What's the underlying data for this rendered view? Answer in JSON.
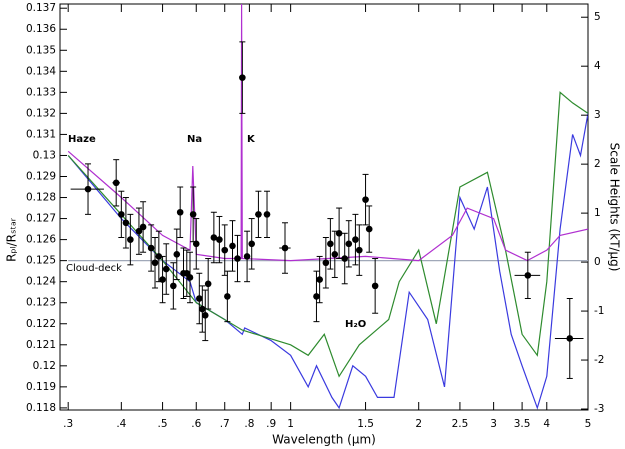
{
  "chart_data": {
    "type": "line",
    "x_label": "Wavelength (μm)",
    "y_label": "Rₚₗ/Rₛₜₐᵣ",
    "y2_label": "Scale Heights (kT/μg)",
    "x_log": true,
    "xlim": [
      0.287,
      5.0
    ],
    "ylim": [
      0.1179,
      0.1372
    ],
    "y2lim": [
      -3.02,
      5.27
    ],
    "xticks": [
      {
        "value": 0.3,
        "label": ".3"
      },
      {
        "value": 0.4,
        "label": ".4"
      },
      {
        "value": 0.5,
        "label": ".5"
      },
      {
        "value": 0.6,
        "label": ".6"
      },
      {
        "value": 0.7,
        "label": ".7"
      },
      {
        "value": 0.8,
        "label": ".8"
      },
      {
        "value": 0.9,
        "label": ".9"
      },
      1,
      1.5,
      2,
      2.5,
      3,
      3.5,
      4,
      5
    ],
    "yticks": [
      0.118,
      0.119,
      0.12,
      0.121,
      0.122,
      0.123,
      0.124,
      0.125,
      0.126,
      0.127,
      0.128,
      0.129,
      0.13,
      0.131,
      0.132,
      0.133,
      0.134,
      0.135,
      0.136,
      0.137
    ],
    "y2ticks": [
      -3,
      -2,
      -1,
      0,
      1,
      2,
      3,
      4,
      5
    ],
    "series": [
      {
        "color": "#a0a8b8",
        "x": [
          0.3,
          5.0
        ],
        "values": [
          0.125,
          0.125
        ]
      },
      {
        "color": "#3a3adf",
        "x": [
          0.3,
          0.4,
          0.5,
          0.58,
          0.6,
          0.7,
          0.77,
          0.78,
          0.9,
          1.0,
          1.1,
          1.15,
          1.25,
          1.3,
          1.4,
          1.5,
          1.6,
          1.75,
          1.9,
          2.1,
          2.3,
          2.5,
          2.7,
          2.9,
          3.1,
          3.3,
          3.5,
          3.8,
          4.0,
          4.3,
          4.6,
          4.8,
          5.0
        ],
        "values": [
          0.13,
          0.127,
          0.125,
          0.124,
          0.123,
          0.1222,
          0.1215,
          0.1218,
          0.1212,
          0.1205,
          0.119,
          0.12,
          0.1185,
          0.118,
          0.12,
          0.1195,
          0.1185,
          0.1185,
          0.1235,
          0.1222,
          0.119,
          0.128,
          0.1265,
          0.1285,
          0.1245,
          0.1215,
          0.12,
          0.118,
          0.1195,
          0.1265,
          0.131,
          0.13,
          0.132
        ]
      },
      {
        "color": "#2e8b2e",
        "x": [
          0.3,
          0.5,
          0.6,
          0.77,
          1.0,
          1.1,
          1.2,
          1.3,
          1.45,
          1.7,
          1.8,
          2.0,
          2.2,
          2.5,
          2.9,
          3.2,
          3.5,
          3.8,
          4.0,
          4.3,
          4.6,
          5.0
        ],
        "values": [
          0.13,
          0.125,
          0.123,
          0.1217,
          0.121,
          0.1205,
          0.1215,
          0.1195,
          0.121,
          0.1222,
          0.124,
          0.1255,
          0.122,
          0.1285,
          0.1292,
          0.1255,
          0.1215,
          0.1205,
          0.124,
          0.133,
          0.1325,
          0.132
        ]
      },
      {
        "color": "#b030d0",
        "x": [
          0.3,
          0.4,
          0.5,
          0.58,
          0.589,
          0.6,
          0.7,
          0.765,
          0.767,
          0.77,
          1.0,
          1.5,
          2.0,
          2.4,
          2.6,
          3.0,
          3.2,
          3.6,
          4.0,
          4.3,
          5.0
        ],
        "values": [
          0.1302,
          0.128,
          0.1262,
          0.1255,
          0.1295,
          0.1253,
          0.1251,
          0.1251,
          0.1372,
          0.1251,
          0.125,
          0.1252,
          0.125,
          0.1262,
          0.1275,
          0.127,
          0.1255,
          0.125,
          0.1255,
          0.1262,
          0.1265
        ]
      },
      {
        "type": "errorbar",
        "color": "#000000",
        "x": [
          0.334,
          0.389,
          0.4,
          0.41,
          0.42,
          0.44,
          0.45,
          0.47,
          0.48,
          0.49,
          0.5,
          0.51,
          0.53,
          0.54,
          0.55,
          0.56,
          0.57,
          0.58,
          0.59,
          0.6,
          0.61,
          0.62,
          0.63,
          0.64,
          0.66,
          0.68,
          0.7,
          0.71,
          0.73,
          0.75,
          0.77,
          0.79,
          0.81,
          0.84,
          0.88,
          0.97,
          1.15,
          1.17,
          1.21,
          1.24,
          1.27,
          1.3,
          1.34,
          1.37,
          1.42,
          1.45,
          1.5,
          1.53,
          1.58,
          3.61,
          4.53
        ],
        "values": [
          0.1284,
          0.1287,
          0.1272,
          0.1268,
          0.126,
          0.1264,
          0.1266,
          0.1256,
          0.1249,
          0.1252,
          0.1241,
          0.1246,
          0.1238,
          0.1253,
          0.1273,
          0.1244,
          0.1244,
          0.1242,
          0.1272,
          0.1258,
          0.1232,
          0.1227,
          0.1224,
          0.1239,
          0.1261,
          0.126,
          0.1255,
          0.1233,
          0.1257,
          0.1251,
          0.1337,
          0.1252,
          0.1258,
          0.1272,
          0.1272,
          0.1256,
          0.1233,
          0.1241,
          0.1249,
          0.1258,
          0.1253,
          0.1263,
          0.1251,
          0.1258,
          0.126,
          0.1255,
          0.1279,
          0.1265,
          0.1238,
          0.1243,
          0.1213
        ],
        "yerr": [
          0.0012,
          0.0011,
          0.0011,
          0.0012,
          0.0012,
          0.0011,
          0.0012,
          0.0011,
          0.0012,
          0.0012,
          0.0011,
          0.0012,
          0.0011,
          0.0012,
          0.0012,
          0.0012,
          0.0011,
          0.0012,
          0.0013,
          0.0012,
          0.0012,
          0.0011,
          0.0012,
          0.0012,
          0.0012,
          0.0011,
          0.0012,
          0.0012,
          0.0012,
          0.0011,
          0.0017,
          0.0012,
          0.0012,
          0.0011,
          0.0011,
          0.0012,
          0.0012,
          0.0011,
          0.0012,
          0.0012,
          0.0011,
          0.0012,
          0.0012,
          0.0011,
          0.0012,
          0.0012,
          0.0012,
          0.0011,
          0.0013,
          0.0011,
          0.0019
        ],
        "xerr": [
          0.03,
          0.008,
          0.005,
          0.005,
          0.005,
          0.005,
          0.005,
          0.005,
          0.005,
          0.005,
          0.005,
          0.005,
          0.005,
          0.005,
          0.005,
          0.005,
          0.005,
          0.005,
          0.005,
          0.005,
          0.005,
          0.005,
          0.005,
          0.005,
          0.008,
          0.008,
          0.008,
          0.008,
          0.008,
          0.008,
          0.008,
          0.008,
          0.008,
          0.015,
          0.015,
          0.03,
          0.01,
          0.01,
          0.01,
          0.01,
          0.01,
          0.01,
          0.01,
          0.01,
          0.01,
          0.01,
          0.01,
          0.01,
          0.01,
          0.25,
          0.35
        ]
      }
    ],
    "annotations": [
      {
        "text": "Haze",
        "color": "#3a3adf"
      },
      {
        "text": "Na",
        "color": "#2e8b2e"
      },
      {
        "text": "K",
        "color": "#2e8b2e"
      },
      {
        "text": "H₂O",
        "color": "#2e8b2e"
      },
      {
        "text": "Cloud-deck",
        "color": "#8890a0"
      }
    ]
  }
}
